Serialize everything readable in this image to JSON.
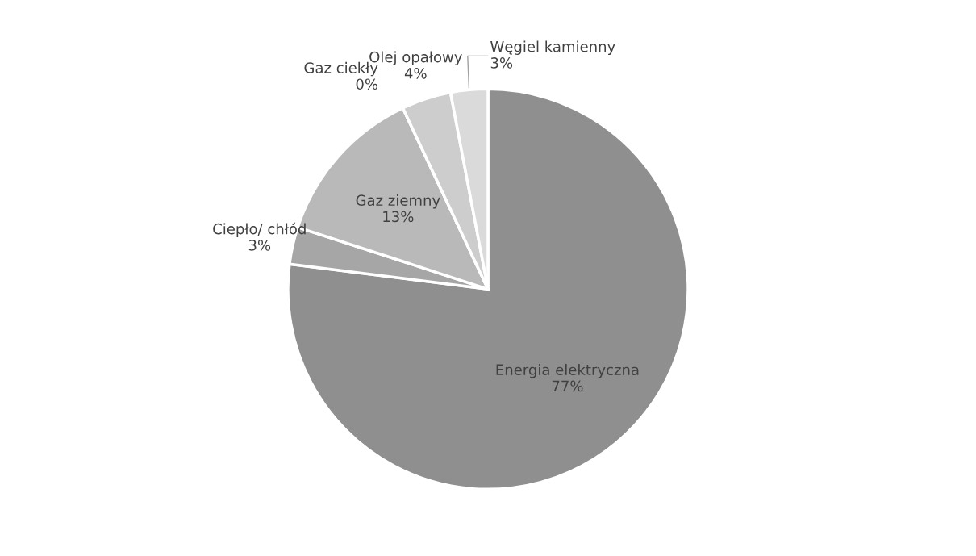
{
  "chart_data": {
    "type": "pie",
    "categories": [
      "Energia elektryczna",
      "Ciepło/ chłód",
      "Gaz ziemny",
      "Gaz ciekły",
      "Olej opałowy",
      "Węgiel kamienny"
    ],
    "values": [
      77,
      3,
      13,
      0,
      4,
      3
    ],
    "value_labels": [
      "77%",
      "3%",
      "13%",
      "0%",
      "4%",
      "3%"
    ],
    "colors": [
      "#8f8f8f",
      "#a6a6a6",
      "#b9b9b9",
      "#c6c6c6",
      "#cdcdcd",
      "#dadada"
    ]
  }
}
